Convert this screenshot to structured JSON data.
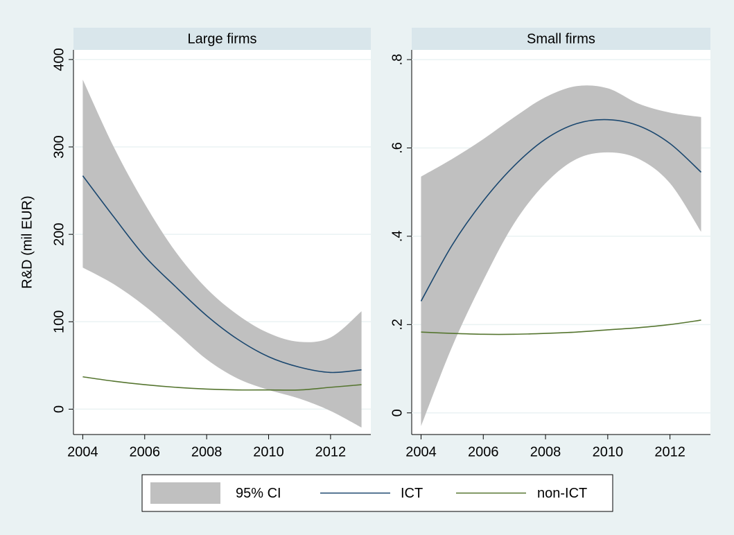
{
  "chart_data": [
    {
      "type": "line",
      "title": "Large firms",
      "ylabel": "R&D (mil EUR)",
      "x": [
        2004,
        2005,
        2006,
        2007,
        2008,
        2009,
        2010,
        2011,
        2012,
        2013
      ],
      "xlim": [
        2003.7,
        2013.3
      ],
      "xticks": [
        2004,
        2006,
        2008,
        2010,
        2012
      ],
      "ylim": [
        -29,
        411
      ],
      "yticks": [
        0,
        100,
        200,
        300,
        400
      ],
      "grid": true,
      "series": [
        {
          "name": "95% CI",
          "type": "band",
          "color": "#c0c0c0",
          "lower": [
            162,
            143,
            118,
            88,
            57,
            35,
            22,
            12,
            -2,
            -21
          ],
          "upper": [
            377,
            300,
            235,
            180,
            138,
            108,
            87,
            77,
            82,
            112
          ]
        },
        {
          "name": "ICT",
          "color": "#1a476f",
          "values": [
            267,
            220,
            175,
            140,
            107,
            80,
            60,
            48,
            42,
            45
          ]
        },
        {
          "name": "non-ICT",
          "color": "#55752f",
          "values": [
            37,
            32,
            28,
            25,
            23,
            22,
            22,
            22,
            25,
            28
          ]
        }
      ]
    },
    {
      "type": "line",
      "title": "Small firms",
      "x": [
        2004,
        2005,
        2006,
        2007,
        2008,
        2009,
        2010,
        2011,
        2012,
        2013
      ],
      "xlim": [
        2003.7,
        2013.3
      ],
      "xticks": [
        2004,
        2006,
        2008,
        2010,
        2012
      ],
      "ylim": [
        -0.049,
        0.822
      ],
      "yticks": [
        0,
        {
          "value": 0.2,
          "label": ".2"
        },
        {
          "value": 0.4,
          "label": ".4"
        },
        {
          "value": 0.6,
          "label": ".6"
        },
        {
          "value": 0.8,
          "label": ".8"
        }
      ],
      "grid": true,
      "series": [
        {
          "type": "band",
          "color": "#c0c0c0",
          "lower": [
            -0.03,
            0.15,
            0.3,
            0.43,
            0.52,
            0.575,
            0.59,
            0.575,
            0.52,
            0.41
          ],
          "upper": [
            0.535,
            0.575,
            0.62,
            0.67,
            0.715,
            0.74,
            0.735,
            0.7,
            0.68,
            0.67
          ]
        },
        {
          "color": "#1a476f",
          "values": [
            0.253,
            0.38,
            0.48,
            0.56,
            0.62,
            0.655,
            0.664,
            0.65,
            0.61,
            0.545
          ]
        },
        {
          "color": "#55752f",
          "values": [
            0.183,
            0.18,
            0.178,
            0.178,
            0.18,
            0.183,
            0.188,
            0.193,
            0.2,
            0.21
          ]
        }
      ]
    }
  ]
}
